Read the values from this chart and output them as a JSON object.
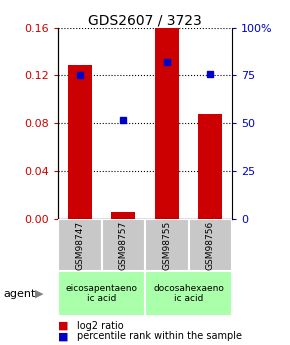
{
  "title": "GDS2607 / 3723",
  "samples": [
    "GSM98747",
    "GSM98757",
    "GSM98755",
    "GSM98756"
  ],
  "log2_ratio": [
    0.129,
    0.006,
    0.16,
    0.088
  ],
  "percentile_rank_pct": [
    75,
    52,
    82,
    76
  ],
  "ylim_left": [
    0,
    0.16
  ],
  "ylim_right": [
    0,
    100
  ],
  "yticks_left": [
    0,
    0.04,
    0.08,
    0.12,
    0.16
  ],
  "yticks_right": [
    0,
    25,
    50,
    75,
    100
  ],
  "ytick_labels_right": [
    "0",
    "25",
    "50",
    "75",
    "100%"
  ],
  "bar_color": "#cc0000",
  "dot_color": "#0000cc",
  "bar_width": 0.55,
  "agent_labels": [
    "eicosapentaeno\nic acid",
    "docosahexaeno\nic acid"
  ],
  "agent_color": "#aaffaa",
  "sample_box_color": "#c8c8c8",
  "legend_red_label": "log2 ratio",
  "legend_blue_label": "percentile rank within the sample",
  "left_tick_color": "#cc0000",
  "right_tick_color": "#0000cc"
}
